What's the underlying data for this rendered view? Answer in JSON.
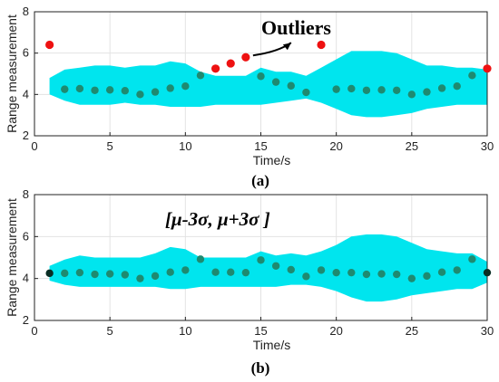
{
  "chart_data": [
    {
      "type": "scatter",
      "panel": "a",
      "caption": "(a)",
      "xlabel": "Time/s",
      "ylabel": "Range measurement",
      "xlim": [
        0,
        30
      ],
      "ylim": [
        2,
        8
      ],
      "xticks": [
        0,
        5,
        10,
        15,
        20,
        25,
        30
      ],
      "yticks": [
        2,
        4,
        6,
        8
      ],
      "grid": true,
      "colors": {
        "band": "#00e5ee",
        "point": "#1f8a70",
        "outlier": "#ee1111"
      },
      "band": {
        "x": [
          1,
          2,
          3,
          4,
          5,
          6,
          7,
          8,
          9,
          10,
          11,
          12,
          13,
          14,
          15,
          16,
          17,
          18,
          19,
          20,
          21,
          22,
          23,
          24,
          25,
          26,
          27,
          28,
          29,
          30
        ],
        "upper": [
          4.8,
          5.2,
          5.3,
          5.4,
          5.4,
          5.3,
          5.4,
          5.4,
          5.6,
          5.5,
          5.1,
          4.9,
          4.9,
          4.9,
          5.3,
          5.1,
          5.1,
          4.9,
          5.3,
          5.7,
          6.1,
          6.1,
          6.1,
          6.0,
          5.7,
          5.4,
          5.4,
          5.3,
          5.3,
          5.2
        ],
        "lower": [
          4.0,
          3.7,
          3.5,
          3.5,
          3.5,
          3.6,
          3.5,
          3.5,
          3.4,
          3.4,
          3.4,
          3.5,
          3.5,
          3.5,
          3.5,
          3.6,
          3.7,
          3.8,
          3.6,
          3.3,
          3.0,
          2.9,
          2.9,
          3.0,
          3.1,
          3.3,
          3.4,
          3.5,
          3.5,
          3.5
        ]
      },
      "points": {
        "x": [
          2,
          3,
          4,
          5,
          6,
          7,
          8,
          9,
          10,
          11,
          15,
          16,
          17,
          18,
          20,
          21,
          22,
          23,
          24,
          25,
          26,
          27,
          28,
          29
        ],
        "y": [
          4.25,
          4.28,
          4.2,
          4.22,
          4.18,
          4.0,
          4.12,
          4.3,
          4.4,
          4.92,
          4.88,
          4.6,
          4.42,
          4.1,
          4.25,
          4.28,
          4.2,
          4.22,
          4.2,
          4.0,
          4.12,
          4.3,
          4.4,
          4.92
        ]
      },
      "outliers": {
        "x": [
          1,
          12,
          13,
          14,
          19,
          30
        ],
        "y": [
          6.4,
          5.25,
          5.5,
          5.8,
          6.4,
          5.25
        ]
      },
      "annotation": {
        "text": "Outliers"
      }
    },
    {
      "type": "scatter",
      "panel": "b",
      "caption": "(b)",
      "xlabel": "Time/s",
      "ylabel": "Range measurement",
      "xlim": [
        0,
        30
      ],
      "ylim": [
        2,
        8
      ],
      "xticks": [
        0,
        5,
        10,
        15,
        20,
        25,
        30
      ],
      "yticks": [
        2,
        4,
        6,
        8
      ],
      "grid": true,
      "colors": {
        "band": "#00e5ee",
        "point": "#1f8a70",
        "endpoint": "#0a2e24"
      },
      "band": {
        "x": [
          1,
          2,
          3,
          4,
          5,
          6,
          7,
          8,
          9,
          10,
          11,
          12,
          13,
          14,
          15,
          16,
          17,
          18,
          19,
          20,
          21,
          22,
          23,
          24,
          25,
          26,
          27,
          28,
          29,
          30
        ],
        "upper": [
          4.6,
          4.9,
          5.1,
          5.0,
          5.0,
          5.0,
          5.0,
          5.2,
          5.5,
          5.4,
          5.0,
          5.0,
          5.0,
          5.0,
          5.3,
          5.1,
          5.2,
          5.1,
          5.3,
          5.6,
          6.0,
          6.1,
          6.1,
          6.0,
          5.7,
          5.4,
          5.3,
          5.2,
          5.2,
          4.8
        ],
        "lower": [
          3.9,
          3.7,
          3.6,
          3.6,
          3.6,
          3.6,
          3.6,
          3.6,
          3.5,
          3.5,
          3.6,
          3.6,
          3.6,
          3.6,
          3.6,
          3.6,
          3.7,
          3.7,
          3.6,
          3.4,
          3.1,
          2.9,
          2.9,
          3.0,
          3.2,
          3.3,
          3.4,
          3.5,
          3.5,
          3.8
        ]
      },
      "points": {
        "x": [
          2,
          3,
          4,
          5,
          6,
          7,
          8,
          9,
          10,
          11,
          12,
          13,
          14,
          15,
          16,
          17,
          18,
          19,
          20,
          21,
          22,
          23,
          24,
          25,
          26,
          27,
          28,
          29
        ],
        "y": [
          4.25,
          4.28,
          4.2,
          4.22,
          4.18,
          4.0,
          4.12,
          4.3,
          4.4,
          4.92,
          4.3,
          4.3,
          4.28,
          4.88,
          4.6,
          4.42,
          4.1,
          4.4,
          4.28,
          4.28,
          4.2,
          4.22,
          4.2,
          4.0,
          4.12,
          4.3,
          4.4,
          4.92
        ]
      },
      "endpoints": {
        "x": [
          1,
          30
        ],
        "y": [
          4.25,
          4.28
        ]
      },
      "annotation": {
        "text": "[μ-3σ, μ+3σ ]"
      }
    }
  ]
}
